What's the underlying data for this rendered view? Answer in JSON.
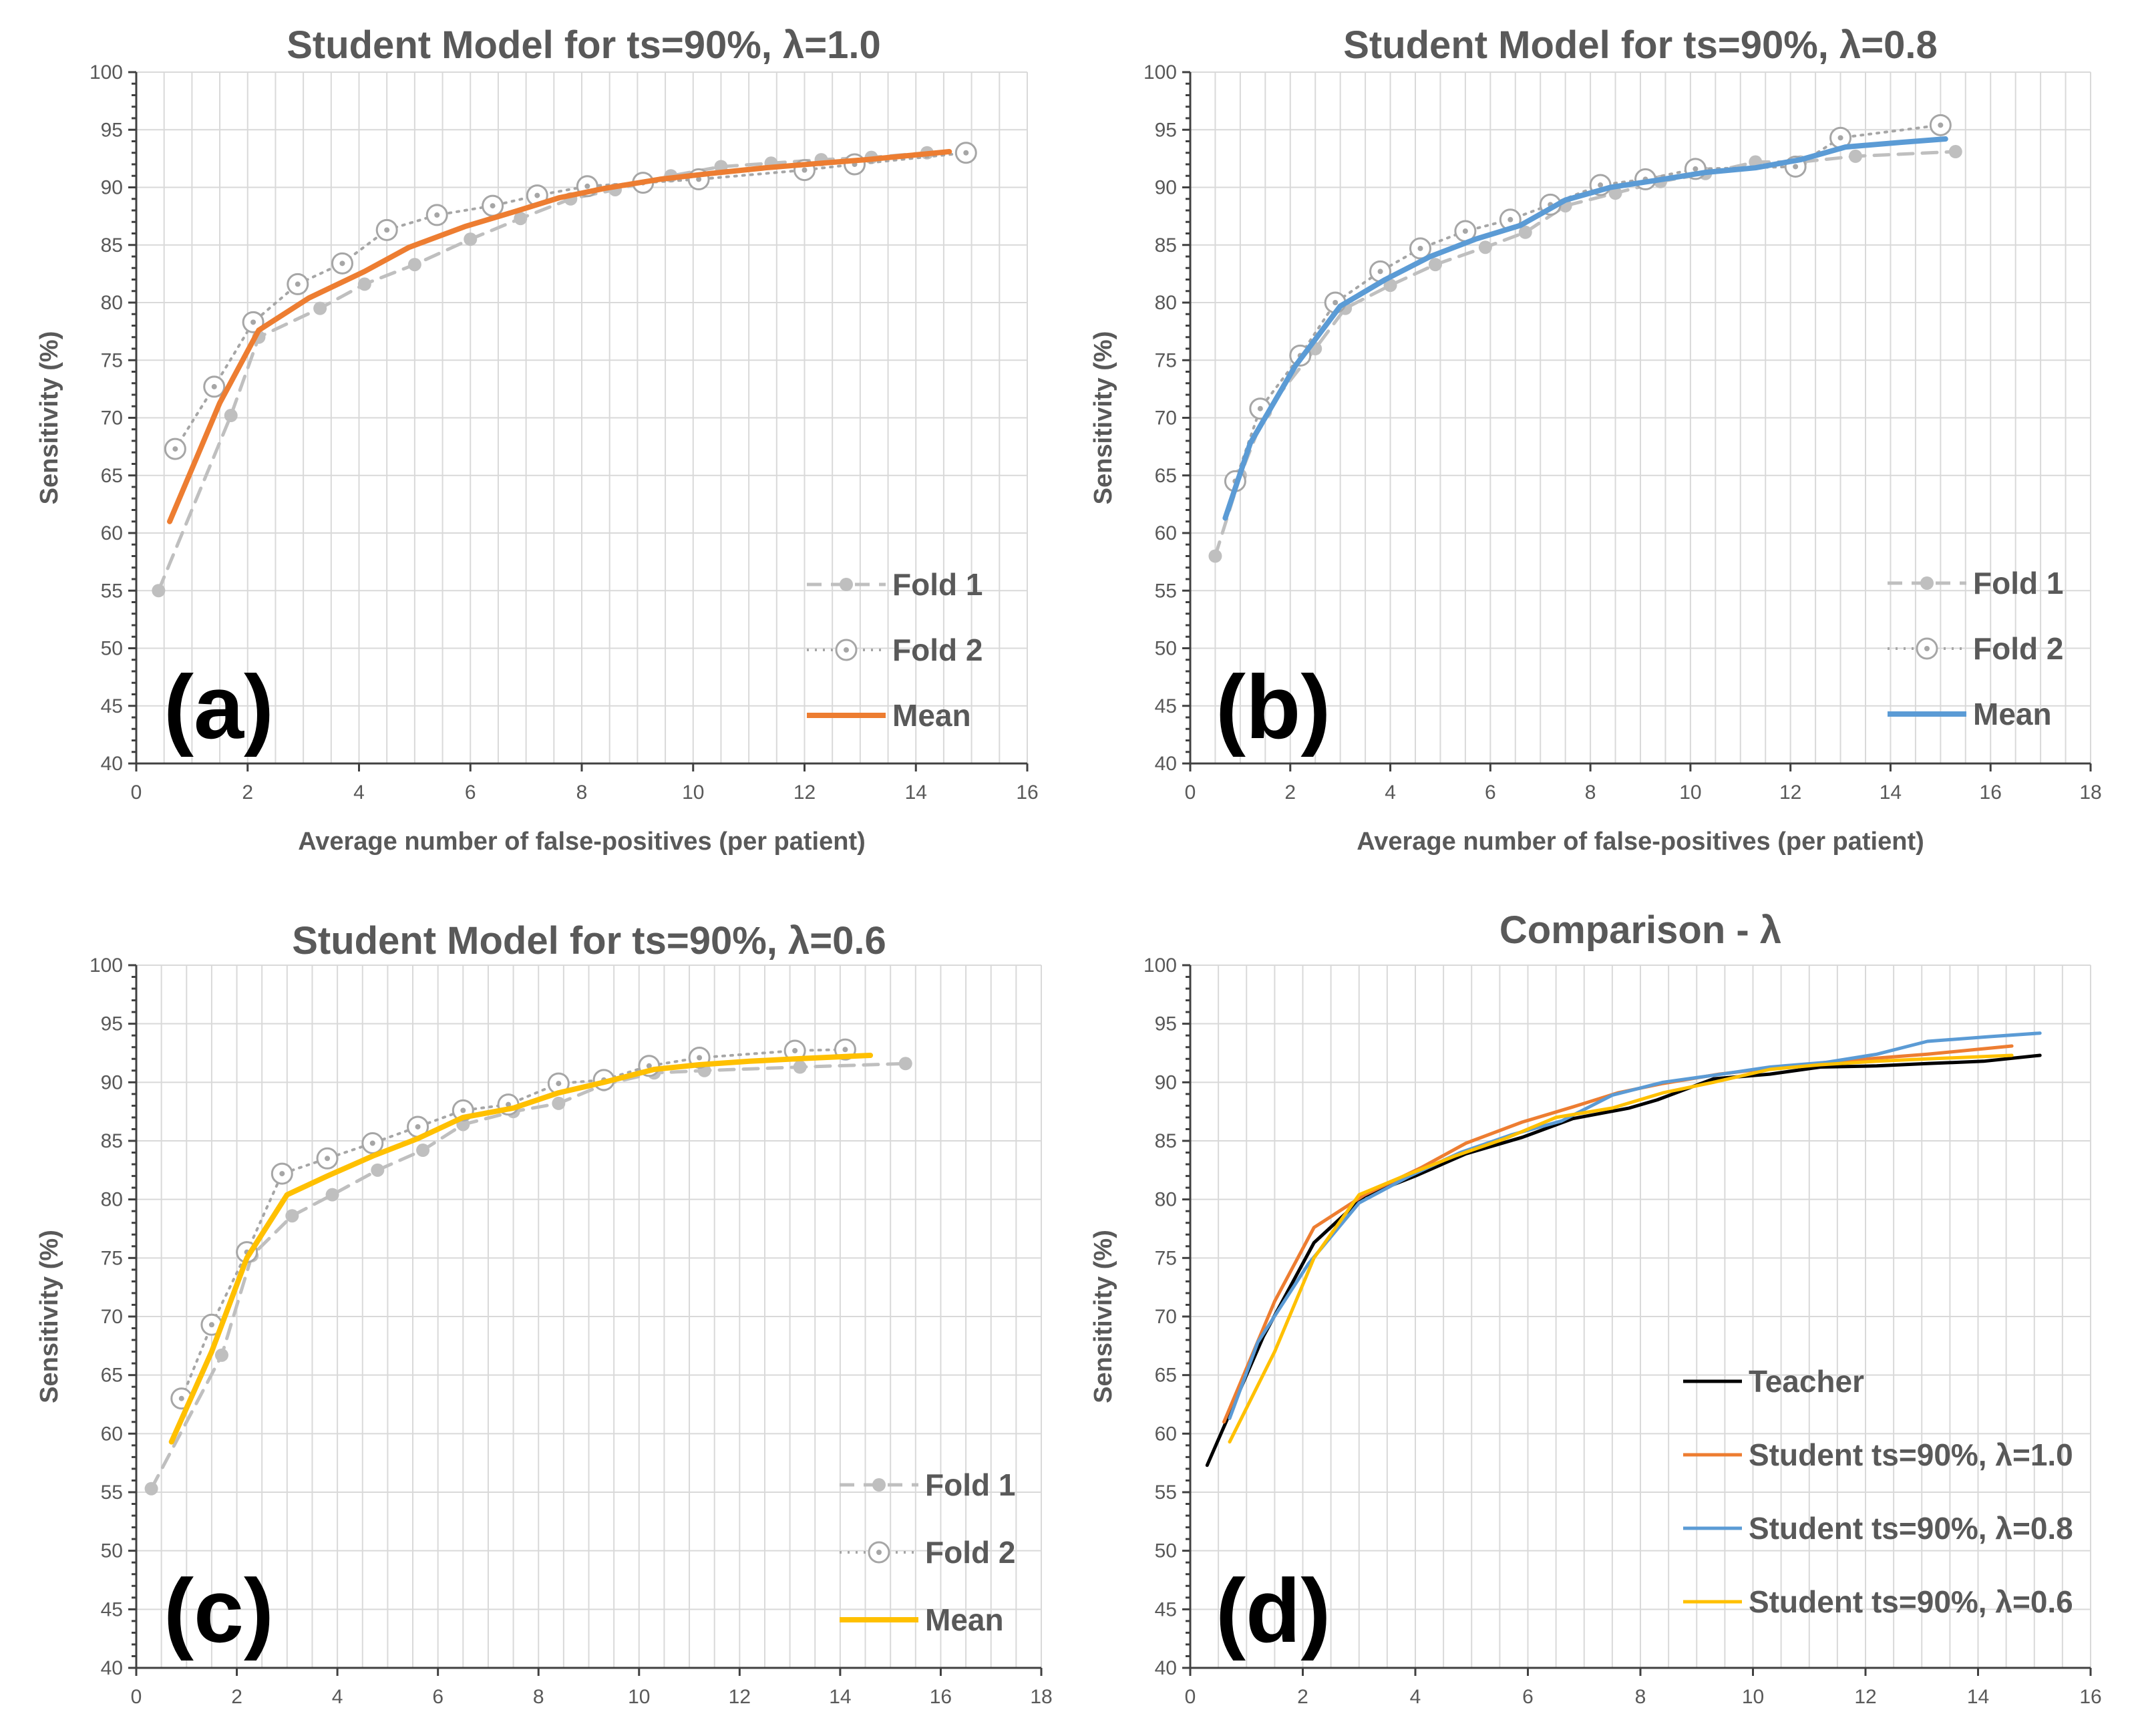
{
  "chart_data": [
    {
      "id": "a",
      "type": "line",
      "title": "Student Model for ts=90%, λ=1.0",
      "panel_label": "(a)",
      "xlabel": "Average number of false-positives (per patient)",
      "ylabel": "Sensitivity (%)",
      "xlim": [
        0,
        16
      ],
      "ylim": [
        40,
        100
      ],
      "xticks": [
        "0",
        "2",
        "4",
        "6",
        "8",
        "10",
        "12",
        "14",
        "16"
      ],
      "yticks": [
        "40",
        "45",
        "50",
        "55",
        "60",
        "65",
        "70",
        "75",
        "80",
        "85",
        "90",
        "95",
        "100"
      ],
      "legend_position": "bottom-right",
      "series": [
        {
          "name": "Fold 1",
          "style": "dashed",
          "marker": "dot",
          "color": "#bfbfbf",
          "x": [
            0.4,
            1.7,
            2.2,
            3.3,
            4.1,
            5.0,
            6.0,
            6.9,
            7.8,
            8.6,
            9.6,
            10.5,
            11.4,
            12.3,
            13.2,
            14.2
          ],
          "y": [
            55.0,
            70.2,
            77.0,
            79.5,
            81.6,
            83.3,
            85.5,
            87.3,
            89.0,
            89.8,
            91.0,
            91.8,
            92.1,
            92.4,
            92.6,
            93.0
          ]
        },
        {
          "name": "Fold 2",
          "style": "dotted",
          "marker": "open-circle",
          "color": "#a6a6a6",
          "x": [
            0.7,
            1.4,
            2.1,
            2.9,
            3.7,
            4.5,
            5.4,
            6.4,
            7.2,
            8.1,
            9.1,
            10.1,
            12.0,
            12.9,
            14.9
          ],
          "y": [
            67.3,
            72.7,
            78.3,
            81.6,
            83.4,
            86.3,
            87.6,
            88.4,
            89.3,
            90.1,
            90.4,
            90.7,
            91.5,
            92.0,
            93.0
          ]
        },
        {
          "name": "Mean",
          "style": "solid",
          "marker": "none",
          "color": "#ed7d31",
          "x": [
            0.6,
            1.5,
            2.2,
            3.1,
            4.1,
            4.9,
            5.9,
            6.8,
            7.6,
            8.4,
            9.4,
            10.3,
            11.3,
            12.3,
            13.1,
            14.6
          ],
          "y": [
            61.0,
            71.3,
            77.6,
            80.4,
            82.7,
            84.8,
            86.6,
            87.9,
            89.1,
            89.9,
            90.7,
            91.2,
            91.7,
            92.1,
            92.4,
            93.1
          ]
        }
      ]
    },
    {
      "id": "b",
      "type": "line",
      "title": "Student Model for ts=90%, λ=0.8",
      "panel_label": "(b)",
      "xlabel": "Average number of false-positives (per patient)",
      "ylabel": "Sensitivity (%)",
      "xlim": [
        0,
        18
      ],
      "ylim": [
        40,
        100
      ],
      "xticks": [
        "0",
        "2",
        "4",
        "6",
        "8",
        "10",
        "12",
        "14",
        "16",
        "18"
      ],
      "yticks": [
        "40",
        "45",
        "50",
        "55",
        "60",
        "65",
        "70",
        "75",
        "80",
        "85",
        "90",
        "95",
        "100"
      ],
      "legend_position": "bottom-right",
      "series": [
        {
          "name": "Fold 1",
          "style": "dashed",
          "marker": "dot",
          "color": "#bfbfbf",
          "x": [
            0.5,
            1.0,
            1.5,
            2.5,
            3.1,
            4.0,
            4.9,
            5.9,
            6.7,
            7.5,
            8.5,
            9.4,
            10.3,
            11.3,
            12.2,
            13.3,
            15.3
          ],
          "y": [
            58.0,
            65.0,
            70.5,
            76.0,
            79.5,
            81.5,
            83.3,
            84.8,
            86.1,
            88.4,
            89.5,
            90.5,
            91.2,
            92.2,
            92.2,
            92.7,
            93.1
          ]
        },
        {
          "name": "Fold 2",
          "style": "dotted",
          "marker": "open-circle",
          "color": "#a6a6a6",
          "x": [
            0.9,
            1.4,
            2.2,
            2.9,
            3.8,
            4.6,
            5.5,
            6.4,
            7.2,
            8.2,
            9.1,
            10.1,
            12.1,
            13.0,
            15.0
          ],
          "y": [
            64.5,
            70.8,
            75.4,
            80.0,
            82.7,
            84.7,
            86.2,
            87.2,
            88.5,
            90.2,
            90.7,
            91.6,
            91.8,
            94.3,
            95.4
          ]
        },
        {
          "name": "Mean",
          "style": "solid",
          "marker": "none",
          "color": "#5b9bd5",
          "x": [
            0.7,
            1.2,
            2.1,
            3.0,
            3.9,
            4.8,
            5.7,
            6.6,
            7.5,
            8.4,
            9.3,
            10.3,
            11.3,
            12.2,
            13.1,
            14.2,
            15.1
          ],
          "y": [
            61.3,
            67.8,
            74.5,
            79.7,
            82.0,
            84.0,
            85.5,
            86.7,
            88.9,
            90.0,
            90.6,
            91.3,
            91.7,
            92.4,
            93.5,
            93.9,
            94.2
          ]
        }
      ]
    },
    {
      "id": "c",
      "type": "line",
      "title": "Student Model for ts=90%, λ=0.6",
      "panel_label": "(c)",
      "xlabel": "",
      "ylabel": "Sensitivity (%)",
      "xlim": [
        0,
        18
      ],
      "ylim": [
        40,
        100
      ],
      "xticks": [
        "0",
        "2",
        "4",
        "6",
        "8",
        "10",
        "12",
        "14",
        "16",
        "18"
      ],
      "yticks": [
        "40",
        "45",
        "50",
        "55",
        "60",
        "65",
        "70",
        "75",
        "80",
        "85",
        "90",
        "95",
        "100"
      ],
      "legend_position": "bottom-right",
      "series": [
        {
          "name": "Fold 1",
          "style": "dashed",
          "marker": "dot",
          "color": "#bfbfbf",
          "x": [
            0.3,
            1.7,
            2.3,
            3.1,
            3.9,
            4.8,
            5.7,
            6.5,
            7.5,
            8.4,
            9.3,
            10.3,
            11.3,
            13.2,
            15.3
          ],
          "y": [
            55.3,
            66.7,
            75.2,
            78.6,
            80.4,
            82.5,
            84.2,
            86.4,
            87.5,
            88.2,
            89.8,
            90.8,
            91.0,
            91.3,
            91.6
          ]
        },
        {
          "name": "Fold 2",
          "style": "dotted",
          "marker": "open-circle",
          "color": "#a6a6a6",
          "x": [
            0.9,
            1.5,
            2.2,
            2.9,
            3.8,
            4.7,
            5.6,
            6.5,
            7.4,
            8.4,
            9.3,
            10.2,
            11.2,
            13.1,
            14.1
          ],
          "y": [
            63.0,
            69.3,
            75.5,
            82.2,
            83.5,
            84.8,
            86.2,
            87.6,
            88.1,
            89.9,
            90.2,
            91.4,
            92.1,
            92.7,
            92.8
          ]
        },
        {
          "name": "Mean",
          "style": "solid",
          "marker": "none",
          "color": "#ffc000",
          "x": [
            0.7,
            1.5,
            2.2,
            3.0,
            3.8,
            4.7,
            5.6,
            6.5,
            7.5,
            8.4,
            9.3,
            10.3,
            11.2,
            12.2,
            13.1,
            14.6
          ],
          "y": [
            59.3,
            67.0,
            75.0,
            80.4,
            82.0,
            83.7,
            85.2,
            87.0,
            87.8,
            89.1,
            90.0,
            91.1,
            91.5,
            91.8,
            92.0,
            92.3
          ]
        }
      ]
    },
    {
      "id": "d",
      "type": "line",
      "title": "Comparison - λ",
      "panel_label": "(d)",
      "xlabel": "",
      "ylabel": "Sensitivity (%)",
      "xlim": [
        0,
        16
      ],
      "ylim": [
        40,
        100
      ],
      "xticks": [
        "0",
        "2",
        "4",
        "6",
        "8",
        "10",
        "12",
        "14",
        "16"
      ],
      "yticks": [
        "40",
        "45",
        "50",
        "55",
        "60",
        "65",
        "70",
        "75",
        "80",
        "85",
        "90",
        "95",
        "100"
      ],
      "legend_position": "bottom-right",
      "series": [
        {
          "name": "Teacher",
          "style": "solid",
          "marker": "none",
          "color": "#000000",
          "x": [
            0.3,
            1.3,
            2.2,
            3.1,
            4.0,
            4.9,
            5.9,
            6.8,
            7.8,
            8.3,
            9.3,
            10.3,
            11.2,
            12.2,
            13.1,
            14.1,
            15.1
          ],
          "y": [
            57.3,
            68.3,
            76.3,
            80.3,
            82.0,
            83.9,
            85.3,
            86.9,
            87.8,
            88.5,
            90.3,
            90.7,
            91.3,
            91.4,
            91.6,
            91.8,
            92.3
          ]
        },
        {
          "name": "Student ts=90%, λ=1.0",
          "style": "solid",
          "marker": "none",
          "color": "#ed7d31",
          "x": [
            0.6,
            1.5,
            2.2,
            3.1,
            4.1,
            4.9,
            5.9,
            6.8,
            7.6,
            8.4,
            9.4,
            10.3,
            11.3,
            12.3,
            13.1,
            14.6
          ],
          "y": [
            61.0,
            71.3,
            77.6,
            80.4,
            82.7,
            84.8,
            86.6,
            87.9,
            89.1,
            89.9,
            90.7,
            91.2,
            91.7,
            92.1,
            92.4,
            93.1
          ]
        },
        {
          "name": "Student ts=90%, λ=0.8",
          "style": "solid",
          "marker": "none",
          "color": "#5b9bd5",
          "x": [
            0.7,
            1.2,
            2.1,
            3.0,
            3.9,
            4.8,
            5.7,
            6.6,
            7.5,
            8.4,
            9.3,
            10.3,
            11.3,
            12.2,
            13.1,
            14.2,
            15.1
          ],
          "y": [
            61.3,
            67.8,
            74.5,
            79.7,
            82.0,
            84.0,
            85.5,
            86.7,
            88.9,
            90.0,
            90.6,
            91.3,
            91.7,
            92.4,
            93.5,
            93.9,
            94.2
          ]
        },
        {
          "name": "Student ts=90%, λ=0.6",
          "style": "solid",
          "marker": "none",
          "color": "#ffc000",
          "x": [
            0.7,
            1.5,
            2.2,
            3.0,
            3.8,
            4.7,
            5.6,
            6.5,
            7.5,
            8.4,
            9.3,
            10.3,
            11.2,
            12.2,
            13.1,
            14.6
          ],
          "y": [
            59.3,
            67.0,
            75.0,
            80.4,
            82.0,
            83.7,
            85.2,
            87.0,
            87.8,
            89.1,
            90.0,
            91.1,
            91.5,
            91.8,
            92.0,
            92.3
          ]
        }
      ]
    }
  ]
}
